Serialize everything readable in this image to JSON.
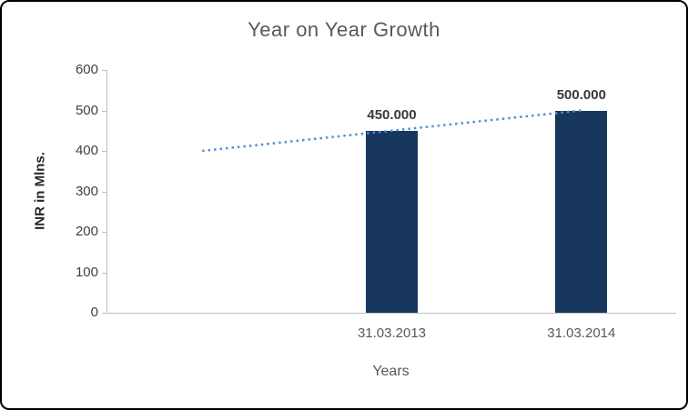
{
  "chart_data": {
    "type": "bar",
    "title": "Year on Year Growth",
    "xlabel": "Years",
    "ylabel": "INR in Mlns.",
    "categories": [
      "",
      "31.03.2013",
      "31.03.2014"
    ],
    "series": [
      {
        "name": "INR in Mlns.",
        "type": "bar",
        "color": "#17375e",
        "values": [
          null,
          450,
          500
        ],
        "data_labels": [
          "",
          "450.000",
          "500.000"
        ]
      },
      {
        "name": "trendline",
        "type": "line",
        "style": "dotted",
        "color": "#558ed5",
        "values": [
          400,
          450,
          500
        ]
      }
    ],
    "ylim": [
      0,
      600
    ],
    "yticks": [
      0,
      100,
      200,
      300,
      400,
      500,
      600
    ],
    "grid": false,
    "legend": "none",
    "axis_color": "#bfbfbf",
    "title_color": "#595959"
  }
}
